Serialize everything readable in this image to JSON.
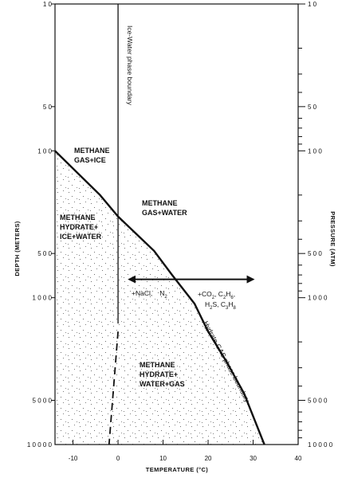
{
  "chart_data": {
    "type": "line",
    "xlabel": "TEMPERATURE (°C)",
    "ylabel_left": "DEPTH (METERS)",
    "ylabel_right": "PRESSURE (ATM)",
    "x_ticks": [
      "-10",
      "0",
      "10",
      "20",
      "30",
      "40"
    ],
    "xlim": [
      -14,
      40
    ],
    "yscale": "log",
    "ylim": [
      10,
      10000
    ],
    "y_left_ticks": [
      "1 0",
      "5 0",
      "1 0 0",
      "5 0 0",
      "1 0 0 0",
      "5 0 0 0",
      "1 0 0 0 0"
    ],
    "y_right_ticks": [
      "1 0",
      "5 0",
      "1 0 0",
      "5 0 0",
      "1 0 0 0",
      "5 0 0 0",
      "1 0 0 0 0"
    ],
    "series": [
      {
        "name": "Hydrate-GAS phase boundary",
        "points": [
          [
            -14,
            100
          ],
          [
            -4,
            200
          ],
          [
            0,
            280
          ],
          [
            8,
            480
          ],
          [
            12,
            700
          ],
          [
            17,
            1100
          ],
          [
            20,
            1700
          ],
          [
            24,
            2700
          ],
          [
            28,
            4500
          ],
          [
            32.5,
            10000
          ]
        ]
      },
      {
        "name": "Ice-Water phase boundary",
        "points": [
          [
            0,
            10
          ],
          [
            0,
            1500
          ]
        ]
      },
      {
        "name": "Ice-Water phase boundary (extrapolated)",
        "points": [
          [
            0,
            1700
          ],
          [
            -2,
            10000
          ]
        ]
      }
    ],
    "arrow": {
      "from": 2.5,
      "to": 30,
      "depth": 750
    },
    "labels": {
      "ice_water_boundary": "Ice-Water phase boundary",
      "hydrate_gas_boundary": "Hydrate-GAS phase boundary",
      "region_gas_ice_line1": "METHANE",
      "region_gas_ice_line2": "GAS+ICE",
      "region_gas_water_line1": "METHANE",
      "region_gas_water_line2": "GAS+WATER",
      "region_hydrate_ice_line1": "METHANE",
      "region_hydrate_ice_line2": "HYDRATE+",
      "region_hydrate_ice_line3": "ICE+WATER",
      "region_hydrate_water_line1": "METHANE",
      "region_hydrate_water_line2": "HYDRATE+",
      "region_hydrate_water_line3": "WATER+GAS",
      "left_effect": "+NaCl,",
      "left_effect_n2": "N",
      "right_effect_line1": "+CO",
      "right_effect_line1b": ", C",
      "right_effect_line1c": "H",
      "right_effect_line2": "H",
      "right_effect_line2b": "S, C",
      "right_effect_line2c": "H",
      "sub_2": "2",
      "sub_6": "6",
      "sub_3": "3",
      "sub_8": "8",
      "subscript_comma": ","
    }
  }
}
